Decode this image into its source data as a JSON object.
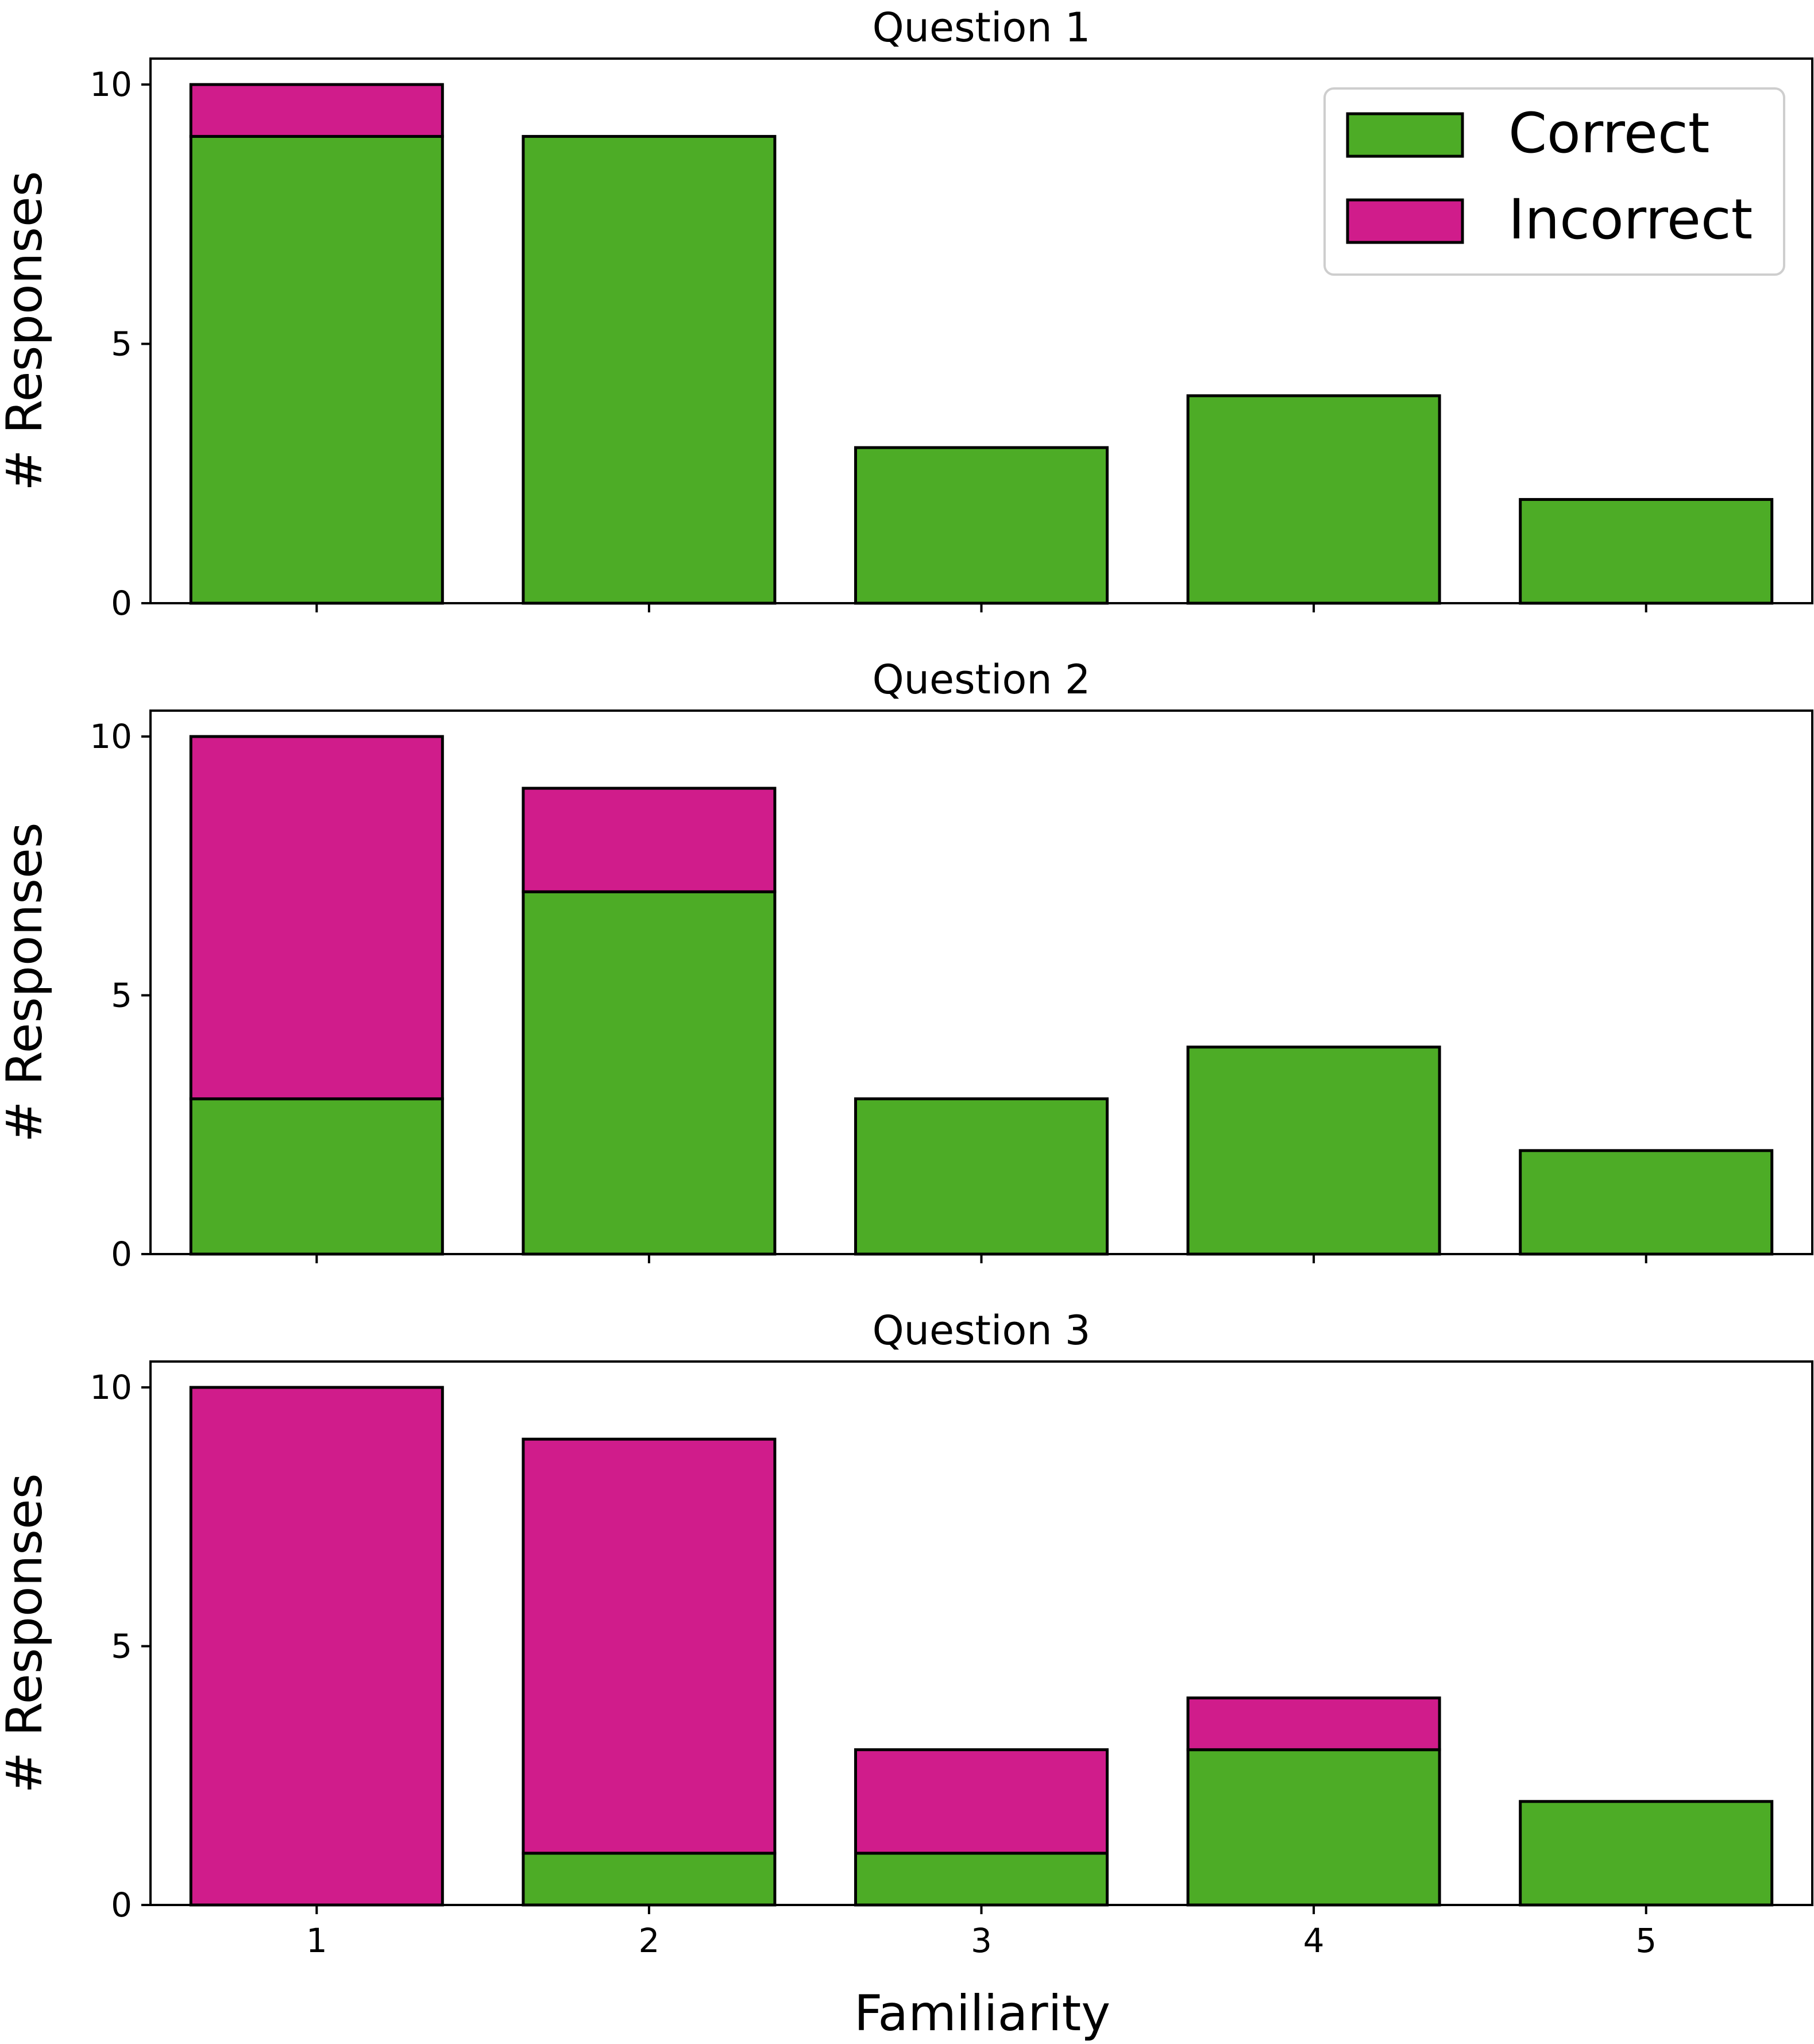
{
  "chart_data": [
    {
      "type": "bar",
      "stacked": true,
      "title": "Question 1",
      "ylabel": "# Responses",
      "xlabel": "",
      "categories": [
        "1",
        "2",
        "3",
        "4",
        "5"
      ],
      "ylim": [
        0,
        10.5
      ],
      "yticks": [
        "0",
        "5",
        "10"
      ],
      "series": [
        {
          "name": "Correct",
          "values": [
            9,
            9,
            3,
            4,
            2
          ]
        },
        {
          "name": "Incorrect",
          "values": [
            1,
            0,
            0,
            0,
            0
          ]
        }
      ],
      "legend": "top-right"
    },
    {
      "type": "bar",
      "stacked": true,
      "title": "Question 2",
      "ylabel": "# Responses",
      "xlabel": "",
      "categories": [
        "1",
        "2",
        "3",
        "4",
        "5"
      ],
      "ylim": [
        0,
        10.5
      ],
      "yticks": [
        "0",
        "5",
        "10"
      ],
      "series": [
        {
          "name": "Correct",
          "values": [
            3,
            7,
            3,
            4,
            2
          ]
        },
        {
          "name": "Incorrect",
          "values": [
            7,
            2,
            0,
            0,
            0
          ]
        }
      ]
    },
    {
      "type": "bar",
      "stacked": true,
      "title": "Question 3",
      "ylabel": "# Responses",
      "xlabel": "Familiarity",
      "categories": [
        "1",
        "2",
        "3",
        "4",
        "5"
      ],
      "ylim": [
        0,
        10.5
      ],
      "yticks": [
        "0",
        "5",
        "10"
      ],
      "series": [
        {
          "name": "Correct",
          "values": [
            0,
            1,
            1,
            3,
            2
          ]
        },
        {
          "name": "Incorrect",
          "values": [
            10,
            8,
            2,
            1,
            0
          ]
        }
      ]
    }
  ],
  "legend": {
    "items": [
      {
        "label": "Correct",
        "color": "#4dac26"
      },
      {
        "label": "Incorrect",
        "color": "#d01c8b"
      }
    ]
  },
  "colors": {
    "correct": "#4dac26",
    "incorrect": "#d01c8b",
    "edge": "#000000"
  }
}
